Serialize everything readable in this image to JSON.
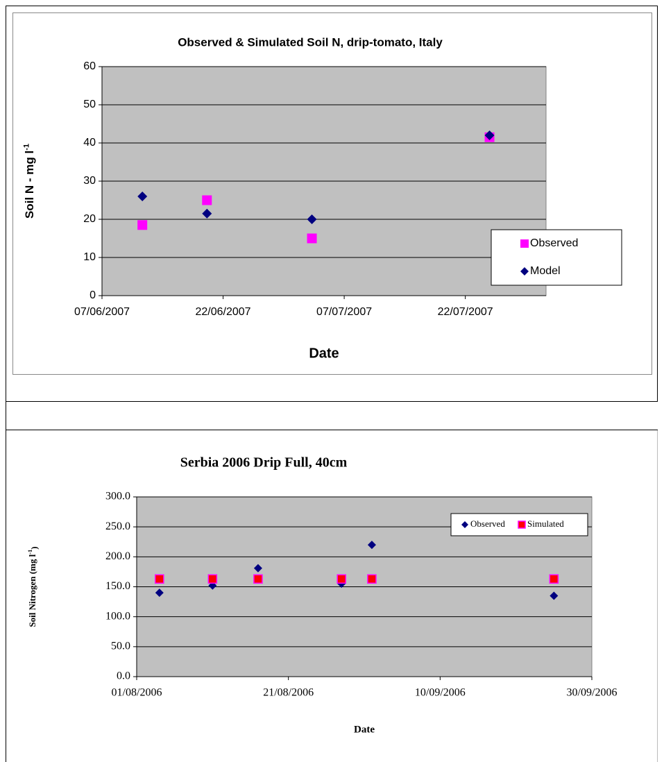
{
  "chart_data": [
    {
      "type": "scatter",
      "title": "Observed  & Simulated  Soil N, drip-tomato, Italy",
      "xlabel": "Date",
      "ylabel": [
        "Soil N - mg l",
        "-1"
      ],
      "xlim": [
        "07/06/2007",
        "01/08/2007"
      ],
      "xticks": [
        "07/06/2007",
        "22/06/2007",
        "07/07/2007",
        "22/07/2007"
      ],
      "ylim": [
        0,
        60
      ],
      "yticks": [
        0,
        10,
        20,
        30,
        40,
        50,
        60
      ],
      "grid": true,
      "legend": "lower right",
      "series": [
        {
          "name": "Observed",
          "color": "#ff00ff",
          "marker": "square",
          "x": [
            "12/06/2007",
            "20/06/2007",
            "03/07/2007",
            "25/07/2007"
          ],
          "values": [
            18.5,
            25,
            15,
            41.5
          ]
        },
        {
          "name": "Model",
          "color": "#000080",
          "marker": "diamond",
          "x": [
            "12/06/2007",
            "20/06/2007",
            "03/07/2007",
            "25/07/2007"
          ],
          "values": [
            26,
            21.5,
            20,
            42
          ]
        }
      ]
    },
    {
      "type": "scatter",
      "title": "Serbia 2006 Drip Full, 40cm",
      "xlabel": "Date",
      "ylabel": [
        "Soil Nitrogen (mg l",
        "-1",
        ")"
      ],
      "xlim": [
        "01/08/2006",
        "30/09/2006"
      ],
      "xticks": [
        "01/08/2006",
        "21/08/2006",
        "10/09/2006",
        "30/09/2006"
      ],
      "ylim": [
        0,
        300
      ],
      "yticks": [
        {
          "value": 0,
          "label": "0.0"
        },
        {
          "value": 50,
          "label": "50.0"
        },
        {
          "value": 100,
          "label": "100.0"
        },
        {
          "value": 150,
          "label": "150.0"
        },
        {
          "value": 200,
          "label": "200.0"
        },
        {
          "value": 250,
          "label": "250.0"
        },
        {
          "value": 300,
          "label": "300.0"
        }
      ],
      "grid": true,
      "legend": "upper right",
      "series": [
        {
          "name": "Observed",
          "color": "#000080",
          "marker": "diamond",
          "x": [
            "04/08/2006",
            "11/08/2006",
            "17/08/2006",
            "28/08/2006",
            "01/09/2006",
            "25/09/2006"
          ],
          "values": [
            140,
            152,
            181,
            155,
            220,
            135
          ]
        },
        {
          "name": "Simulated",
          "color": "#ff0000",
          "marker": "square",
          "x": [
            "04/08/2006",
            "11/08/2006",
            "17/08/2006",
            "28/08/2006",
            "01/09/2006",
            "25/09/2006"
          ],
          "values": [
            163,
            163,
            163,
            163,
            163,
            163
          ]
        }
      ]
    }
  ]
}
